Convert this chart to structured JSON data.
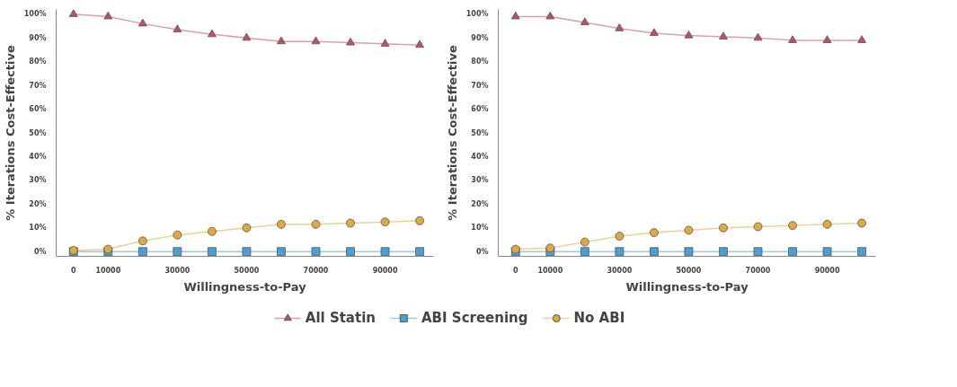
{
  "chart_data": [
    {
      "type": "line",
      "xlabel": "Willingness-to-Pay",
      "ylabel": "% Iterations Cost-Effective",
      "x": [
        0,
        10000,
        20000,
        30000,
        40000,
        50000,
        60000,
        70000,
        80000,
        90000,
        100000
      ],
      "xlim": [
        -5000,
        104000
      ],
      "xticks": [
        0,
        10000,
        30000,
        50000,
        70000,
        90000
      ],
      "ylim": [
        -2,
        102
      ],
      "yticks": [
        {
          "value": 0,
          "label": "0%"
        },
        {
          "value": 10,
          "label": "10%"
        },
        {
          "value": 20,
          "label": "20%"
        },
        {
          "value": 30,
          "label": "30%"
        },
        {
          "value": 40,
          "label": "40%"
        },
        {
          "value": 50,
          "label": "50%"
        },
        {
          "value": 60,
          "label": "60%"
        },
        {
          "value": 70,
          "label": "70%"
        },
        {
          "value": 80,
          "label": "80%"
        },
        {
          "value": 90,
          "label": "90%"
        },
        {
          "value": 100,
          "label": "100%"
        }
      ],
      "grid": false,
      "legend": "bottom",
      "series": [
        {
          "name": "All Statin",
          "color": "#c0505f",
          "marker": "triangle",
          "values": [
            100,
            99,
            96,
            93.5,
            91.5,
            90,
            88.5,
            88.5,
            88,
            87.5,
            87
          ]
        },
        {
          "name": "ABI Screening",
          "color": "#4a9fd4",
          "marker": "square",
          "values": [
            0,
            0,
            0,
            0,
            0,
            0,
            0,
            0,
            0,
            0,
            0
          ]
        },
        {
          "name": "No ABI",
          "color": "#e0a840",
          "marker": "circle",
          "values": [
            0.5,
            1,
            4.5,
            7,
            8.5,
            10,
            11.5,
            11.5,
            12,
            12.5,
            13
          ]
        }
      ]
    },
    {
      "type": "line",
      "xlabel": "Willingness-to-Pay",
      "ylabel": "% Iterations Cost-Effective",
      "x": [
        0,
        10000,
        20000,
        30000,
        40000,
        50000,
        60000,
        70000,
        80000,
        90000,
        100000
      ],
      "xlim": [
        -5000,
        104000
      ],
      "xticks": [
        0,
        10000,
        30000,
        50000,
        70000,
        90000
      ],
      "ylim": [
        -2,
        102
      ],
      "yticks": [
        {
          "value": 0,
          "label": "0%"
        },
        {
          "value": 10,
          "label": "10%"
        },
        {
          "value": 20,
          "label": "20%"
        },
        {
          "value": 30,
          "label": "30%"
        },
        {
          "value": 40,
          "label": "40%"
        },
        {
          "value": 50,
          "label": "50%"
        },
        {
          "value": 60,
          "label": "60%"
        },
        {
          "value": 70,
          "label": "70%"
        },
        {
          "value": 80,
          "label": "80%"
        },
        {
          "value": 90,
          "label": "90%"
        },
        {
          "value": 100,
          "label": "100%"
        }
      ],
      "grid": false,
      "series": [
        {
          "color": "#c0505f",
          "marker": "triangle",
          "values": [
            99,
            99,
            96.5,
            94,
            92,
            91,
            90.5,
            90,
            89,
            89,
            89
          ]
        },
        {
          "color": "#4a9fd4",
          "marker": "square",
          "values": [
            0,
            0,
            0,
            0,
            0,
            0,
            0,
            0,
            0,
            0,
            0
          ]
        },
        {
          "color": "#e0a840",
          "marker": "circle",
          "values": [
            1,
            1.5,
            4,
            6.5,
            8,
            9,
            10,
            10.5,
            11,
            11.5,
            12
          ]
        }
      ]
    }
  ]
}
